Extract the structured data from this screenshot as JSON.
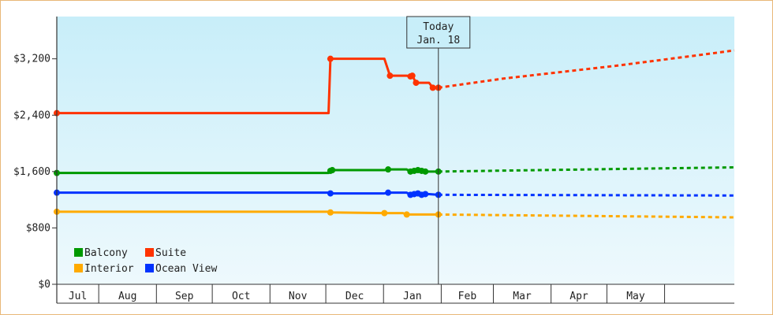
{
  "chart_data": {
    "type": "line",
    "title": "",
    "xlabel": "",
    "ylabel": "",
    "x_unit": "days since Jul 1",
    "ylim": [
      0,
      3800
    ],
    "yticks": [
      0,
      800,
      1600,
      2400,
      3200
    ],
    "ytick_labels": [
      "$0",
      "$800",
      "$1,600",
      "$2,400",
      "$3,200"
    ],
    "months": [
      "Jul",
      "Aug",
      "Sep",
      "Oct",
      "Nov",
      "Dec",
      "Jan",
      "Feb",
      "Mar",
      "Apr",
      "May"
    ],
    "grid": false,
    "legend_position": "bottom-left",
    "today": {
      "title": "Today",
      "date": "Jan. 18"
    },
    "series": [
      {
        "name": "Suite",
        "color": "#ff3300",
        "points": [
          [
            0,
            2430
          ],
          [
            146,
            2430
          ],
          [
            147,
            3200
          ],
          [
            176,
            3200
          ],
          [
            179,
            2960
          ],
          [
            188,
            2960
          ],
          [
            190,
            2950
          ],
          [
            191,
            2960
          ],
          [
            193,
            2860
          ],
          [
            200,
            2860
          ],
          [
            202,
            2790
          ],
          [
            205,
            2790
          ]
        ],
        "projection": [
          [
            205,
            2790
          ],
          [
            240,
            2920
          ],
          [
            300,
            3100
          ],
          [
            350,
            3270
          ],
          [
            364,
            3320
          ]
        ]
      },
      {
        "name": "Balcony",
        "color": "#009900",
        "points": [
          [
            0,
            1580
          ],
          [
            146,
            1580
          ],
          [
            147,
            1610
          ],
          [
            148,
            1620
          ],
          [
            176,
            1620
          ],
          [
            178,
            1630
          ],
          [
            188,
            1630
          ],
          [
            190,
            1600
          ],
          [
            192,
            1610
          ],
          [
            194,
            1620
          ],
          [
            196,
            1610
          ],
          [
            198,
            1600
          ],
          [
            205,
            1600
          ]
        ],
        "projection": [
          [
            205,
            1600
          ],
          [
            364,
            1660
          ]
        ]
      },
      {
        "name": "Ocean View",
        "color": "#0033ff",
        "points": [
          [
            0,
            1300
          ],
          [
            146,
            1300
          ],
          [
            147,
            1290
          ],
          [
            176,
            1290
          ],
          [
            178,
            1300
          ],
          [
            188,
            1300
          ],
          [
            190,
            1270
          ],
          [
            192,
            1280
          ],
          [
            194,
            1290
          ],
          [
            196,
            1270
          ],
          [
            198,
            1280
          ],
          [
            200,
            1280
          ],
          [
            205,
            1270
          ]
        ],
        "projection": [
          [
            205,
            1270
          ],
          [
            364,
            1260
          ]
        ]
      },
      {
        "name": "Interior",
        "color": "#ffaa00",
        "points": [
          [
            0,
            1030
          ],
          [
            146,
            1030
          ],
          [
            147,
            1020
          ],
          [
            176,
            1010
          ],
          [
            178,
            1010
          ],
          [
            184,
            1010
          ],
          [
            186,
            1010
          ],
          [
            188,
            990
          ],
          [
            200,
            990
          ],
          [
            205,
            990
          ]
        ],
        "projection": [
          [
            205,
            990
          ],
          [
            364,
            950
          ]
        ]
      }
    ]
  }
}
